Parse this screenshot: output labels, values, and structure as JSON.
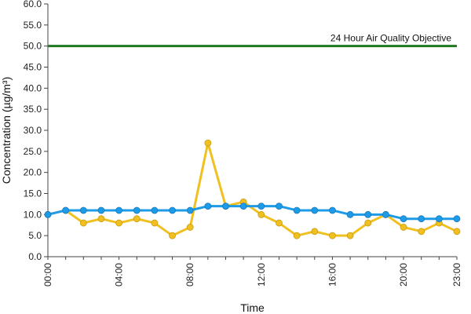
{
  "chart_data": {
    "type": "line",
    "xlabel": "Time",
    "ylabel": "Concentration (µg/m³)",
    "x": [
      "00:00",
      "01:00",
      "02:00",
      "03:00",
      "04:00",
      "05:00",
      "06:00",
      "07:00",
      "08:00",
      "09:00",
      "10:00",
      "11:00",
      "12:00",
      "13:00",
      "14:00",
      "15:00",
      "16:00",
      "17:00",
      "18:00",
      "19:00",
      "20:00",
      "21:00",
      "22:00",
      "23:00"
    ],
    "x_tick_labels": [
      "00:00",
      "04:00",
      "08:00",
      "12:00",
      "16:00",
      "20:00",
      "23:00"
    ],
    "ylim": [
      0,
      60
    ],
    "y_tick_labels": [
      "0.0",
      "5.0",
      "10.0",
      "15.0",
      "20.0",
      "25.0",
      "30.0",
      "35.0",
      "40.0",
      "45.0",
      "50.0",
      "55.0",
      "60.0"
    ],
    "grid": false,
    "series": [
      {
        "color": "#1e9be6",
        "values": [
          10,
          11,
          11,
          11,
          11,
          11,
          11,
          11,
          11,
          12,
          12,
          12,
          12,
          12,
          11,
          11,
          11,
          10,
          10,
          10,
          9,
          9,
          9,
          9
        ]
      },
      {
        "color": "#f0c020",
        "values": [
          10,
          11,
          8,
          9,
          8,
          9,
          8,
          5,
          7,
          27,
          12,
          13,
          10,
          8,
          5,
          6,
          5,
          5,
          8,
          10,
          7,
          6,
          8,
          6
        ]
      }
    ],
    "reference_line": {
      "value": 50,
      "label": "24 Hour Air Quality Objective",
      "color": "#1f7a1f"
    }
  }
}
